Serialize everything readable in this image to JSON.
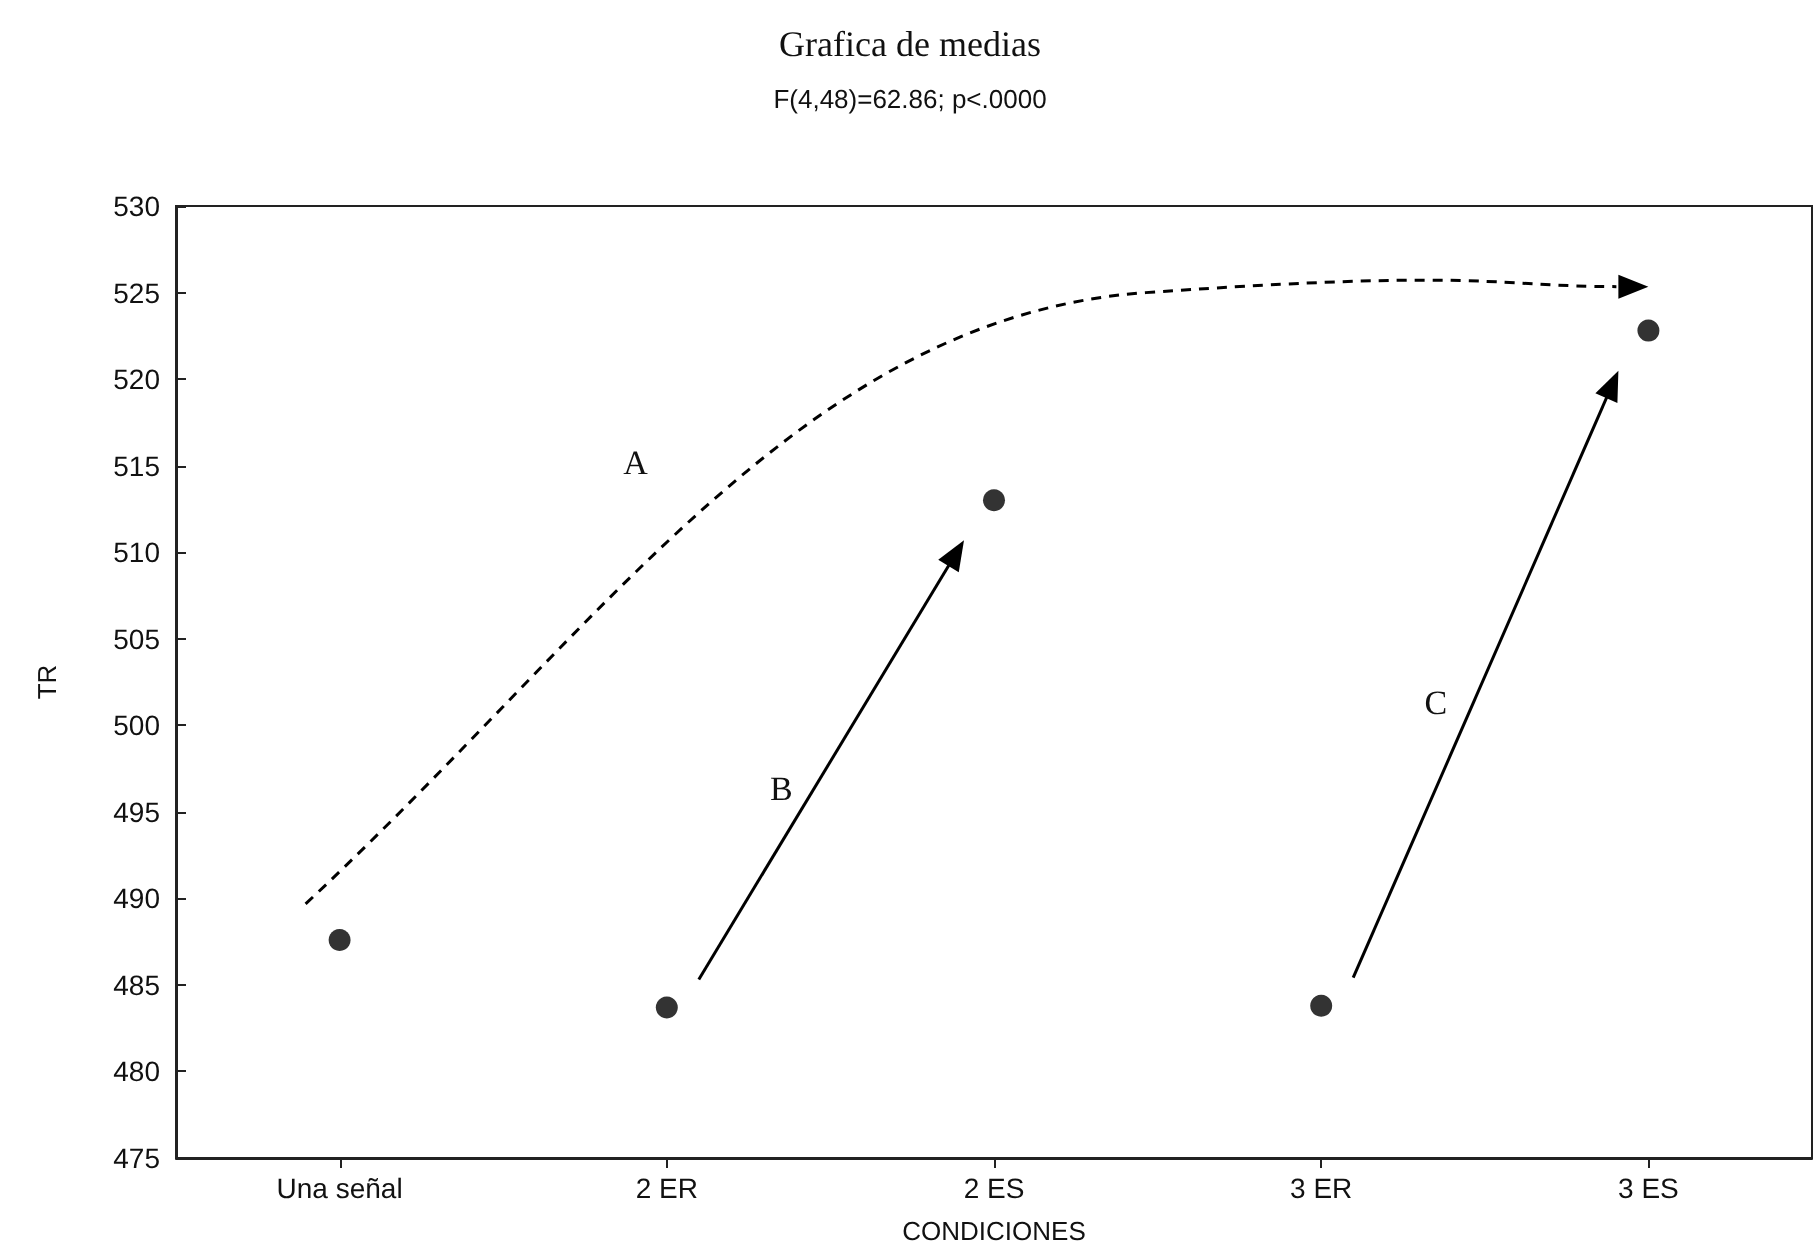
{
  "chart_data": {
    "type": "scatter",
    "title": "Grafica de medias",
    "subtitle": "F(4,48)=62.86; p<.0000",
    "xlabel": "CONDICIONES",
    "ylabel": "TR",
    "categories": [
      "Una señal",
      "2 ER",
      "2 ES",
      "3 ER",
      "3 ES"
    ],
    "series": [
      {
        "color": "#000000",
        "values": [
          487.6,
          483.7,
          513.0,
          483.8,
          522.8
        ]
      }
    ],
    "ylim": [
      475,
      530
    ],
    "yticks": [
      475,
      480,
      485,
      490,
      495,
      500,
      505,
      510,
      515,
      520,
      525,
      530
    ],
    "grid": false,
    "marker": "circle",
    "annotations": [
      "A",
      "B",
      "C"
    ]
  }
}
